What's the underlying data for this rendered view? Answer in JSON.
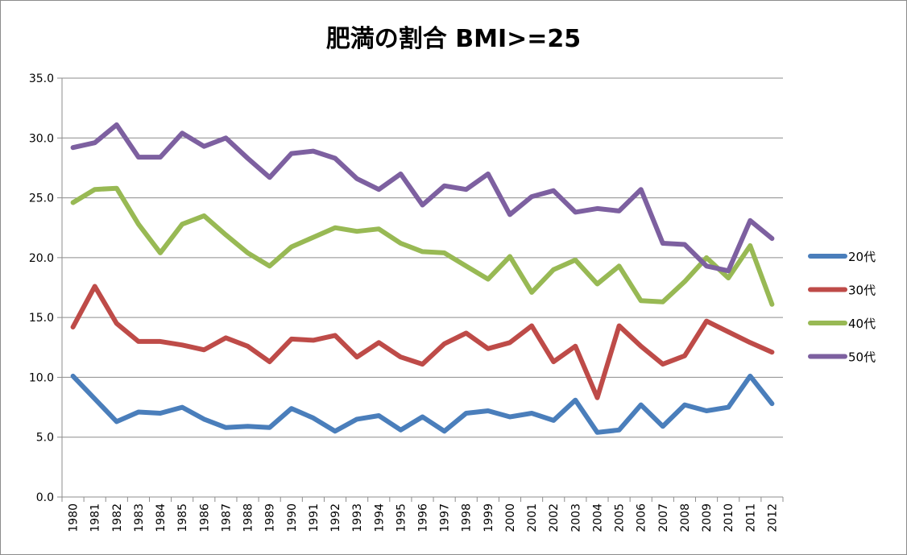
{
  "chart_data": {
    "type": "line",
    "title": "肥満の割合 BMI>=25",
    "xlabel": "",
    "ylabel": "",
    "ylim": [
      0,
      35
    ],
    "yticks": [
      "0.0",
      "5.0",
      "10.0",
      "15.0",
      "20.0",
      "25.0",
      "30.0",
      "35.0"
    ],
    "grid": true,
    "legend_position": "right",
    "categories": [
      "1980",
      "1981",
      "1982",
      "1983",
      "1984",
      "1985",
      "1986",
      "1987",
      "1988",
      "1989",
      "1990",
      "1991",
      "1992",
      "1993",
      "1994",
      "1995",
      "1996",
      "1997",
      "1998",
      "1999",
      "2000",
      "2001",
      "2002",
      "2003",
      "2004",
      "2005",
      "2006",
      "2007",
      "2008",
      "2009",
      "2010",
      "2011",
      "2012"
    ],
    "series": [
      {
        "name": "20代",
        "color": "#4a7ebb",
        "values": [
          10.1,
          8.2,
          6.3,
          7.1,
          7.0,
          7.5,
          6.5,
          5.8,
          5.9,
          5.8,
          7.4,
          6.6,
          5.5,
          6.5,
          6.8,
          5.6,
          6.7,
          5.5,
          7.0,
          7.2,
          6.7,
          7.0,
          6.4,
          8.1,
          5.4,
          5.6,
          7.7,
          5.9,
          7.7,
          7.2,
          7.5,
          10.1,
          7.8
        ]
      },
      {
        "name": "30代",
        "color": "#be4b48",
        "values": [
          14.2,
          17.6,
          14.5,
          13.0,
          13.0,
          12.7,
          12.3,
          13.3,
          12.6,
          11.3,
          13.2,
          13.1,
          13.5,
          11.7,
          12.9,
          11.7,
          11.1,
          12.8,
          13.7,
          12.4,
          12.9,
          14.3,
          11.3,
          12.6,
          8.3,
          14.3,
          12.6,
          11.1,
          11.8,
          14.7,
          13.8,
          12.9,
          12.1
        ]
      },
      {
        "name": "40代",
        "color": "#98b954",
        "values": [
          24.6,
          25.7,
          25.8,
          22.8,
          20.4,
          22.8,
          23.5,
          21.9,
          20.4,
          19.3,
          20.9,
          21.7,
          22.5,
          22.2,
          22.4,
          21.2,
          20.5,
          20.4,
          19.3,
          18.2,
          20.1,
          17.1,
          19.0,
          19.8,
          17.8,
          19.3,
          16.4,
          16.3,
          18.0,
          20.0,
          18.3,
          21.0,
          16.1
        ]
      },
      {
        "name": "50代",
        "color": "#7d60a0",
        "values": [
          29.2,
          29.6,
          31.1,
          28.4,
          28.4,
          30.4,
          29.3,
          30.0,
          28.3,
          26.7,
          28.7,
          28.9,
          28.3,
          26.6,
          25.7,
          27.0,
          24.4,
          26.0,
          25.7,
          27.0,
          23.6,
          25.1,
          25.6,
          23.8,
          24.1,
          23.9,
          25.7,
          21.2,
          21.1,
          19.3,
          18.9,
          23.1,
          21.6
        ]
      }
    ]
  }
}
